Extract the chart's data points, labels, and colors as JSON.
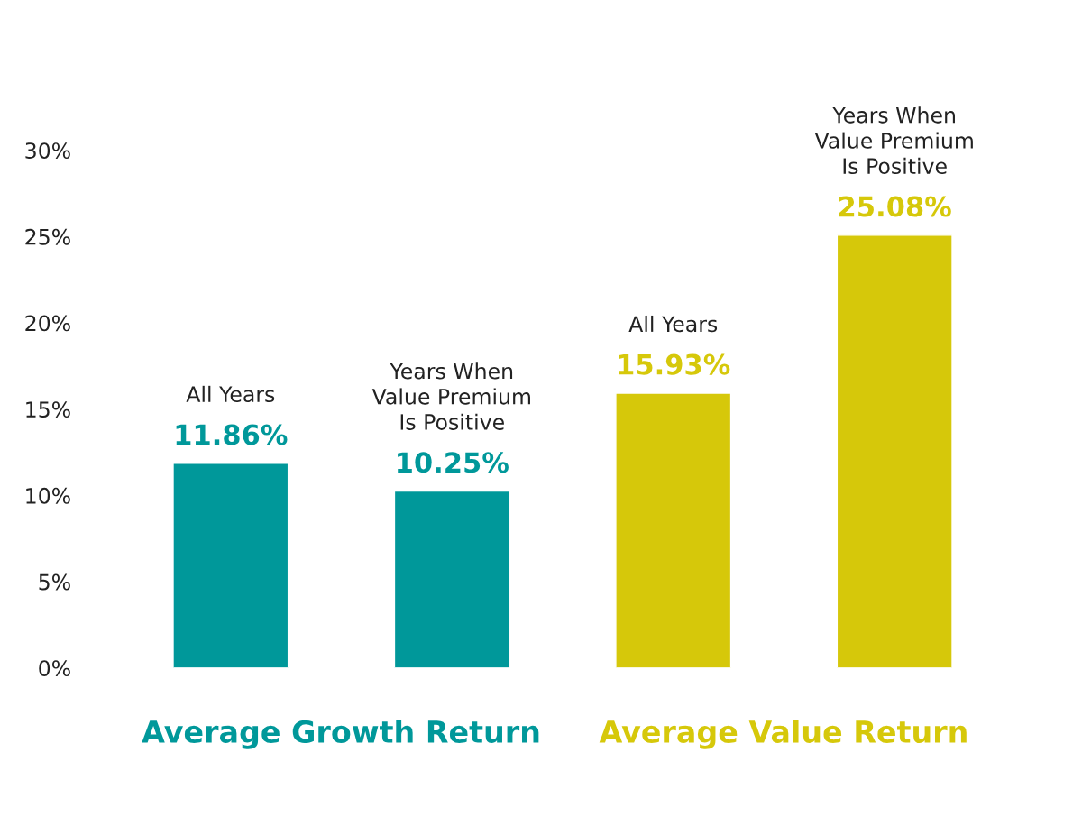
{
  "chart_data": {
    "type": "bar",
    "categories": [
      "All Years",
      "Years When\nValue Premium\nIs Positive",
      "All Years",
      "Years When\nValue Premium\nIs Positive"
    ],
    "values": [
      11.86,
      10.25,
      15.93,
      25.08
    ],
    "value_labels": [
      "11.86%",
      "10.25%",
      "15.93%",
      "25.08%"
    ],
    "colors": [
      "#00989a",
      "#00989a",
      "#d6c80a",
      "#d6c80a"
    ],
    "annotations": [
      "Average Growth Return",
      "Average Value Return"
    ],
    "ylim": [
      0,
      30
    ],
    "yticks": [
      {
        "value": 0,
        "label": "0%"
      },
      {
        "value": 5,
        "label": "5%"
      },
      {
        "value": 10,
        "label": "10%"
      },
      {
        "value": 15,
        "label": "15%"
      },
      {
        "value": 20,
        "label": "20%"
      },
      {
        "value": 25,
        "label": "25%"
      },
      {
        "value": 30,
        "label": "30%"
      }
    ],
    "tick_labels": "y",
    "grid": false,
    "legend": false
  }
}
